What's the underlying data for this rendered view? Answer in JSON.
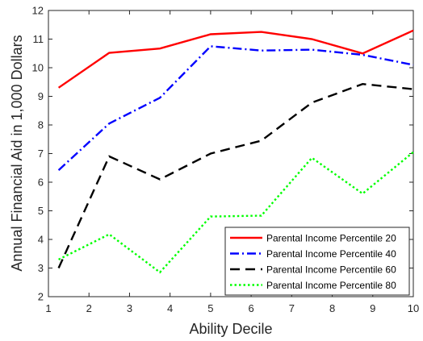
{
  "chart_data": {
    "type": "line",
    "title": "",
    "xlabel": "Ability Decile",
    "ylabel": "Annual Financial Aid in 1,000 Dollars",
    "xlim": [
      1,
      10
    ],
    "ylim": [
      2,
      12
    ],
    "xticks": [
      "1",
      "2",
      "3",
      "4",
      "5",
      "6",
      "7",
      "8",
      "9",
      "10"
    ],
    "yticks": [
      "2",
      "3",
      "4",
      "5",
      "6",
      "7",
      "8",
      "9",
      "10",
      "11",
      "12"
    ],
    "grid": false,
    "legend_position": "bottom-right",
    "x": [
      1.25,
      2.5,
      3.75,
      5.0,
      6.25,
      7.5,
      8.75,
      10.0
    ],
    "series": [
      {
        "name": "Parental Income Percentile 20",
        "color": "#ff0000",
        "dash": "solid",
        "values": [
          9.3,
          10.52,
          10.67,
          11.17,
          11.25,
          11.0,
          10.5,
          11.3
        ]
      },
      {
        "name": "Parental Income Percentile 40",
        "color": "#0000ff",
        "dash": "dashdot",
        "values": [
          6.42,
          8.05,
          8.95,
          10.75,
          10.6,
          10.63,
          10.45,
          10.1
        ]
      },
      {
        "name": "Parental Income Percentile 60",
        "color": "#000000",
        "dash": "dashed",
        "values": [
          3.0,
          6.9,
          6.1,
          7.0,
          7.45,
          8.78,
          9.43,
          9.25
        ]
      },
      {
        "name": "Parental Income Percentile 80",
        "color": "#00ff00",
        "dash": "dotted",
        "values": [
          3.3,
          4.18,
          2.85,
          4.8,
          4.83,
          6.85,
          5.6,
          7.05
        ]
      }
    ]
  }
}
